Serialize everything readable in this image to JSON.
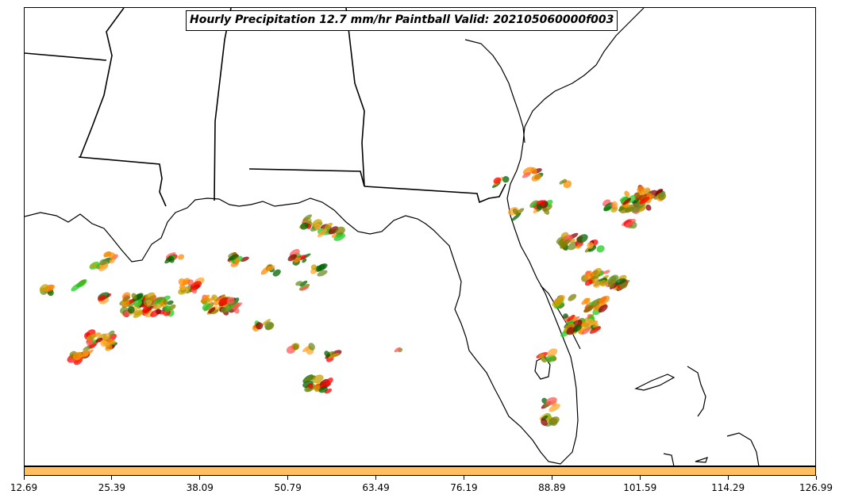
{
  "title": "Hourly Precipitation 12.7 mm/hr Paintball Valid: 202105060000f003",
  "colorbar": {
    "color": "#ffbf5f",
    "ticks": [
      "12.69",
      "25.39",
      "38.09",
      "50.79",
      "63.49",
      "76.19",
      "88.89",
      "101.59",
      "114.29",
      "126.99"
    ]
  },
  "member_colors": [
    "#ff0000",
    "#ff8c00",
    "#8b0000",
    "#006400",
    "#22cc22",
    "#808000",
    "#ff5a5a",
    "#c8a000",
    "#ffa62e",
    "#6b8e23"
  ],
  "features": [
    "state-borders",
    "coastline-southeast-us",
    "florida-peninsula",
    "bahamas"
  ]
}
